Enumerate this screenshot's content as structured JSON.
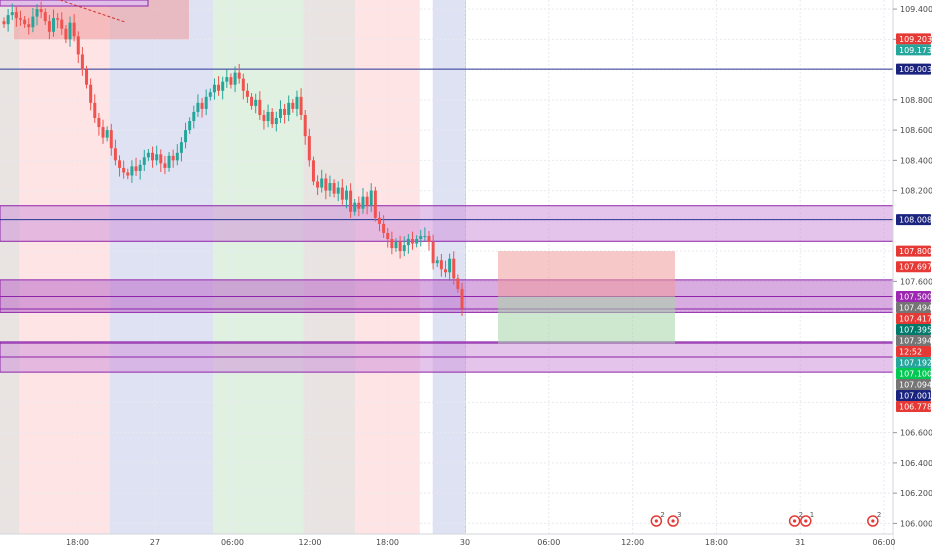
{
  "chart_data": {
    "type": "candlestick",
    "symbol_hint": "",
    "y_range": [
      105.93,
      109.46
    ],
    "x_range_hours": [
      -36,
      120
    ],
    "x_ticks": [
      {
        "label": "18:00",
        "h": -30
      },
      {
        "label": "27",
        "h": -24
      },
      {
        "label": "06:00",
        "h": -18
      },
      {
        "label": "12:00",
        "h": -12
      },
      {
        "label": "18:00",
        "h": -6
      },
      {
        "label": "30",
        "h": 0
      },
      {
        "label": "06:00",
        "h": 6
      },
      {
        "label": "12:00",
        "h": 12
      },
      {
        "label": "18:00",
        "h": 18
      },
      {
        "label": "31",
        "h": 24
      },
      {
        "label": "06:00",
        "h": 30
      }
    ],
    "y_ticks": [
      "109.400",
      "109.200",
      "108.800",
      "108.600",
      "108.400",
      "108.200",
      "107.600",
      "106.600",
      "106.400",
      "106.200",
      "106.000"
    ],
    "price_badges": [
      {
        "label": "109.203",
        "price": 109.203,
        "color": "#e53935"
      },
      {
        "label": "109.173",
        "price": 109.173,
        "color": "#26a69a"
      },
      {
        "label": "109.003",
        "price": 109.003,
        "color": "#1a237e"
      },
      {
        "label": "108.008",
        "price": 108.008,
        "color": "#1a237e"
      },
      {
        "label": "107.800",
        "price": 107.8,
        "color": "#e53935"
      },
      {
        "label": "107.697",
        "price": 107.697,
        "color": "#e53935"
      },
      {
        "label": "107.500",
        "price": 107.5,
        "color": "#9c27b0"
      },
      {
        "label": "107.494",
        "price": 107.494,
        "color": "#757575"
      },
      {
        "label": "107.417",
        "price": 107.417,
        "color": "#e53935"
      },
      {
        "label": "12:52",
        "price": 107.34,
        "color": "#e53935"
      },
      {
        "label": "107.395",
        "price": 107.395,
        "color": "#00796b"
      },
      {
        "label": "107.394",
        "price": 107.394,
        "color": "#757575"
      },
      {
        "label": "107.192",
        "price": 107.192,
        "color": "#26a69a"
      },
      {
        "label": "107.100",
        "price": 107.1,
        "color": "#00c853"
      },
      {
        "label": "107.094",
        "price": 107.094,
        "color": "#757575"
      },
      {
        "label": "107.001",
        "price": 107.001,
        "color": "#1a237e"
      },
      {
        "label": "106.778",
        "price": 106.778,
        "color": "#e53935"
      }
    ],
    "session_bands": [
      {
        "h0": -36,
        "h1": -34.5,
        "color": "#d7ccc8"
      },
      {
        "h0": -34.5,
        "h1": -27.5,
        "color": "#ffcdd2"
      },
      {
        "h0": -27.5,
        "h1": -19.5,
        "color": "#c5cae9"
      },
      {
        "h0": -19.5,
        "h1": -12.5,
        "color": "#c8e6c9"
      },
      {
        "h0": -12.5,
        "h1": -8.5,
        "color": "#d7ccc8"
      },
      {
        "h0": -8.5,
        "h1": -3.5,
        "color": "#ffcdd2"
      },
      {
        "h0": -2.5,
        "h1": 0,
        "color": "#c5cae9"
      }
    ],
    "horizontal_lines": [
      109.003,
      108.008,
      107.5,
      107.417,
      107.192,
      107.1
    ],
    "zones": [
      {
        "y0": 107.865,
        "y1": 108.1,
        "fill": "#ce93d8"
      },
      {
        "y0": 107.395,
        "y1": 107.61,
        "fill": "#ba68c8"
      },
      {
        "y0": 107.0,
        "y1": 107.2,
        "fill": "#ce93d8"
      }
    ],
    "top_left_box": {
      "h0": -35,
      "h1": -26,
      "y0": 109.2,
      "y1": 109.46
    },
    "position_box": {
      "h0": 2.5,
      "h1": 15,
      "entry": 107.5,
      "stop": 107.8,
      "target": 107.19
    },
    "candles_close": [
      109.3,
      109.36,
      109.38,
      109.34,
      109.33,
      109.3,
      109.28,
      109.35,
      109.4,
      109.38,
      109.32,
      109.25,
      109.34,
      109.33,
      109.27,
      109.2,
      109.31,
      109.22,
      109.1,
      109.0,
      108.9,
      108.78,
      108.68,
      108.62,
      108.55,
      108.6,
      108.48,
      108.4,
      108.35,
      108.32,
      108.3,
      108.36,
      108.33,
      108.37,
      108.42,
      108.45,
      108.4,
      108.44,
      108.38,
      108.35,
      108.43,
      108.4,
      108.45,
      108.52,
      108.6,
      108.66,
      108.72,
      108.78,
      108.74,
      108.82,
      108.85,
      108.9,
      108.86,
      108.92,
      108.95,
      108.9,
      108.98,
      108.94,
      108.86,
      108.82,
      108.76,
      108.8,
      108.7,
      108.66,
      108.72,
      108.64,
      108.68,
      108.74,
      108.7,
      108.78,
      108.74,
      108.82,
      108.7,
      108.56,
      108.4,
      108.26,
      108.22,
      108.28,
      108.2,
      108.25,
      108.18,
      108.22,
      108.14,
      108.2,
      108.06,
      108.12,
      108.08,
      108.16,
      108.1,
      108.2,
      108.02,
      107.98,
      107.92,
      107.88,
      107.82,
      107.86,
      107.8,
      107.84,
      107.88,
      107.85,
      107.88,
      107.9,
      107.9,
      107.86,
      107.72,
      107.74,
      107.68,
      107.66,
      107.75,
      107.62,
      107.55,
      107.42
    ]
  },
  "events": [
    {
      "label": "2",
      "h": 13.7
    },
    {
      "label": "3",
      "h": 14.9
    },
    {
      "label": "2",
      "h": 23.6
    },
    {
      "label": "1",
      "h": 24.4
    },
    {
      "label": "2",
      "h": 29.2
    }
  ]
}
